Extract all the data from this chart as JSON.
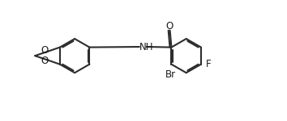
{
  "bg_color": "#ffffff",
  "line_color": "#2d2d2d",
  "line_width": 1.5,
  "font_size": 8.5,
  "text_color": "#1a1a1a",
  "figsize": [
    3.54,
    1.5
  ],
  "dpi": 100,
  "xlim": [
    -0.5,
    11.5
  ],
  "ylim": [
    0.0,
    4.2
  ],
  "labels": {
    "O_top": "O",
    "O_bot": "O",
    "NH": "NH",
    "O_carbonyl": "O",
    "Br": "Br",
    "F": "F"
  }
}
